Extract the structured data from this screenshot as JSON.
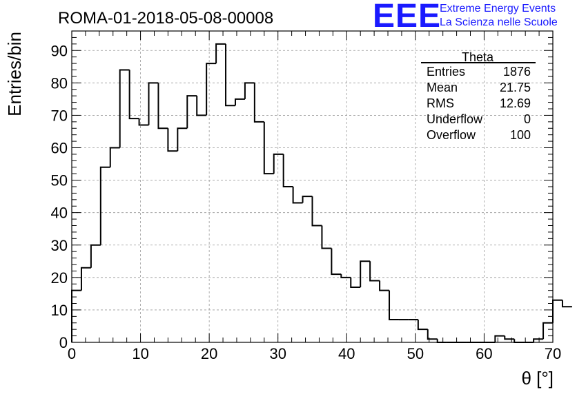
{
  "chart_data": {
    "type": "bar",
    "histogram": true,
    "title": "ROMA-01-2018-05-08-00008",
    "xlabel": "θ [°]",
    "ylabel": "Entries/bin",
    "xlim": [
      0,
      70
    ],
    "ylim": [
      0,
      96
    ],
    "bin_width": 1.4,
    "grid": true,
    "x_ticks": [
      0,
      10,
      20,
      30,
      40,
      50,
      60,
      70
    ],
    "y_ticks": [
      0,
      10,
      20,
      30,
      40,
      50,
      60,
      70,
      80,
      90
    ],
    "bin_edges_start": 0,
    "values": [
      16,
      23,
      30,
      54,
      60,
      84,
      69,
      67,
      80,
      66,
      59,
      66,
      76,
      70,
      86,
      92,
      73,
      75,
      80,
      68,
      52,
      58,
      48,
      43,
      45,
      36,
      29,
      21,
      20,
      17,
      25,
      19,
      16,
      7,
      7,
      7,
      4,
      1,
      0,
      0,
      0,
      0,
      0,
      0,
      2,
      1,
      0,
      0,
      1,
      6,
      13,
      11
    ],
    "stats_box": {
      "title": "Theta",
      "rows": [
        {
          "label": "Entries",
          "value": "1876"
        },
        {
          "label": "Mean",
          "value": "21.75"
        },
        {
          "label": "RMS",
          "value": "12.69"
        },
        {
          "label": "Underflow",
          "value": "0"
        },
        {
          "label": "Overflow",
          "value": "100"
        }
      ]
    }
  },
  "logo": {
    "mark": "EEE",
    "line1": "Extreme Energy Events",
    "line2": "La Scienza nelle Scuole",
    "color": "#1a1aff"
  }
}
